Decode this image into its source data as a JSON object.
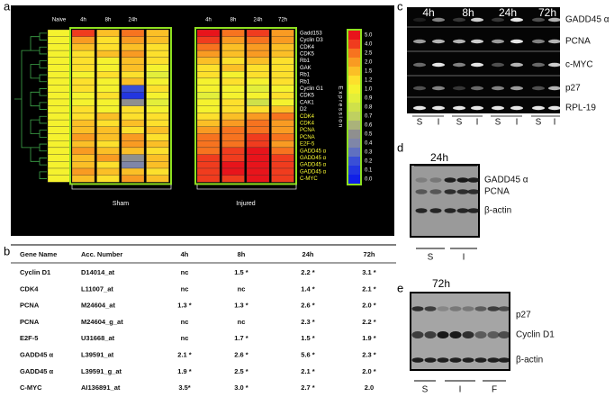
{
  "panels": {
    "a": "a",
    "b": "b",
    "c": "c",
    "d": "d",
    "e": "e"
  },
  "heatmap": {
    "columns": [
      "Naive",
      "4h",
      "8h",
      "24h",
      null,
      "4h",
      "8h",
      "24h",
      "72h"
    ],
    "groups": [
      "Sham",
      "Injured"
    ],
    "genes": [
      {
        "label": "Gadd153",
        "color": "#ffffff"
      },
      {
        "label": "Cyclin D3",
        "color": "#ffffff"
      },
      {
        "label": "CDK4",
        "color": "#ffffff"
      },
      {
        "label": "CDK5",
        "color": "#ffffff"
      },
      {
        "label": "Rb1",
        "color": "#ffffff"
      },
      {
        "label": "GAK",
        "color": "#ffffff"
      },
      {
        "label": "Rb1",
        "color": "#ffffff"
      },
      {
        "label": "Rb1",
        "color": "#ffffff"
      },
      {
        "label": "Cyclin G1",
        "color": "#ffffff"
      },
      {
        "label": "CDK5",
        "color": "#ffffff"
      },
      {
        "label": "CAK1",
        "color": "#ffffff"
      },
      {
        "label": "D2",
        "color": "#ffffff"
      },
      {
        "label": "CDK4",
        "color": "#ffff33"
      },
      {
        "label": "CDK4",
        "color": "#ffff33"
      },
      {
        "label": "PCNA",
        "color": "#ffff33"
      },
      {
        "label": "PCNA",
        "color": "#ffff33"
      },
      {
        "label": "E2F-5",
        "color": "#ffff33"
      },
      {
        "label": "GADD45 α",
        "color": "#ffff33"
      },
      {
        "label": "GADD45 α",
        "color": "#ffff33"
      },
      {
        "label": "GADD45 α",
        "color": "#ffff33"
      },
      {
        "label": "GADD45 α",
        "color": "#ffff33"
      },
      {
        "label": "C-MYC",
        "color": "#ffff33"
      }
    ],
    "values": [
      [
        1.0,
        4.0,
        1.5,
        2.5,
        1.5,
        5.0,
        2.5,
        4.0,
        2.0
      ],
      [
        1.0,
        2.0,
        1.2,
        2.0,
        1.5,
        4.0,
        2.0,
        2.5,
        2.0
      ],
      [
        1.0,
        1.5,
        1.2,
        1.5,
        1.2,
        2.5,
        1.5,
        2.0,
        1.5
      ],
      [
        1.0,
        1.2,
        1.5,
        2.0,
        1.2,
        2.0,
        1.5,
        2.0,
        1.5
      ],
      [
        1.0,
        1.2,
        1.0,
        1.5,
        1.2,
        1.5,
        1.2,
        1.5,
        1.2
      ],
      [
        1.0,
        1.2,
        1.0,
        1.5,
        1.0,
        1.2,
        1.5,
        1.2,
        1.2
      ],
      [
        1.0,
        1.0,
        1.2,
        1.2,
        0.9,
        1.2,
        1.0,
        1.2,
        1.2
      ],
      [
        1.0,
        1.2,
        1.0,
        1.5,
        1.0,
        1.0,
        1.2,
        1.0,
        1.2
      ],
      [
        1.0,
        1.2,
        1.0,
        0.2,
        1.2,
        1.0,
        1.0,
        0.9,
        1.0
      ],
      [
        1.0,
        1.0,
        1.2,
        0.1,
        1.0,
        0.9,
        1.0,
        1.0,
        1.2
      ],
      [
        1.0,
        1.0,
        1.0,
        0.5,
        0.9,
        1.0,
        1.2,
        0.8,
        1.0
      ],
      [
        1.0,
        1.2,
        1.0,
        1.2,
        1.0,
        1.0,
        1.2,
        1.2,
        1.5
      ],
      [
        1.0,
        1.2,
        1.5,
        1.2,
        1.2,
        1.2,
        1.5,
        2.0,
        2.5
      ],
      [
        1.0,
        1.5,
        1.2,
        1.5,
        1.2,
        1.5,
        2.0,
        2.5,
        2.0
      ],
      [
        1.0,
        1.5,
        1.5,
        1.2,
        1.5,
        2.0,
        2.5,
        2.5,
        2.0
      ],
      [
        1.0,
        2.0,
        1.5,
        2.0,
        1.2,
        2.5,
        2.5,
        4.0,
        2.5
      ],
      [
        1.0,
        1.5,
        1.2,
        2.0,
        1.5,
        2.5,
        2.5,
        4.0,
        2.0
      ],
      [
        1.0,
        2.0,
        1.5,
        1.5,
        1.2,
        2.5,
        4.0,
        5.0,
        2.5
      ],
      [
        1.0,
        1.5,
        2.0,
        0.5,
        1.5,
        4.0,
        4.0,
        5.0,
        4.0
      ],
      [
        1.0,
        1.5,
        1.2,
        0.4,
        1.5,
        4.0,
        5.0,
        5.0,
        4.0
      ],
      [
        1.0,
        2.0,
        1.5,
        1.5,
        1.2,
        4.0,
        5.0,
        5.0,
        4.0
      ],
      [
        1.0,
        1.5,
        1.2,
        2.0,
        1.5,
        4.0,
        4.0,
        5.0,
        4.0
      ]
    ],
    "scale_title": "Expression",
    "scale_ticks": [
      {
        "value": 5,
        "label": "5.0"
      },
      {
        "value": 4,
        "label": "4.0"
      },
      2.5,
      {
        "value": 2,
        "label": "2.0"
      },
      1.5,
      1.2,
      {
        "value": 1,
        "label": "1.0"
      },
      0.9,
      0.8,
      0.7,
      0.6,
      0.5,
      0.4,
      0.3,
      0.2,
      0.1,
      {
        "value": 0,
        "label": "0.0"
      }
    ],
    "scale_colors": [
      "#e8141b",
      "#f03c1e",
      "#f7731f",
      "#f99b22",
      "#fbbf26",
      "#fde02c",
      "#f5f22e",
      "#e3ef3a",
      "#cfe14a",
      "#bfd060",
      "#aab27a",
      "#8f8f8f",
      "#7f86a8",
      "#6070c0",
      "#3a4fd6",
      "#2236e0",
      "#1020e8"
    ]
  },
  "table": {
    "header": [
      "Gene Name",
      "Acc. Number",
      "4h",
      "8h",
      "24h",
      "72h"
    ],
    "rows": [
      [
        "Cyclin D1",
        "D14014_at",
        "nc",
        "1.5 *",
        "2.2 *",
        "3.1 *"
      ],
      [
        "CDK4",
        "L11007_at",
        "nc",
        "nc",
        "1.4 *",
        "2.1 *"
      ],
      [
        "PCNA",
        "M24604_at",
        "1.3 *",
        "1.3 *",
        "2.6 *",
        "2.0 *"
      ],
      [
        "PCNA",
        "M24604_g_at",
        "nc",
        "nc",
        "2.3 *",
        "2.2 *"
      ],
      [
        "E2F-5",
        "U31668_at",
        "nc",
        "1.7 *",
        "1.5 *",
        "1.9 *"
      ],
      [
        "GADD45 α",
        "L39591_at",
        "2.1 *",
        "2.6 *",
        "5.6 *",
        "2.3 *"
      ],
      [
        "GADD45 α",
        "L39591_g_at",
        "1.9 *",
        "2.5 *",
        "2.1 *",
        "2.0 *"
      ],
      [
        "C-MYC",
        "AI136891_at",
        "3.5*",
        "3.0 *",
        "2.7 *",
        "2.0"
      ]
    ]
  },
  "blot_c": {
    "times": [
      "4h",
      "8h",
      "24h",
      "72h"
    ],
    "genes": [
      "GADD45 α",
      "PCNA",
      "c-MYC",
      "p27",
      "RPL-19"
    ],
    "lanes": [
      "S",
      "I",
      "S",
      "I",
      "S",
      "I",
      "S",
      "I"
    ]
  },
  "blot_d": {
    "time": "24h",
    "proteins": [
      "GADD45 α",
      "PCNA",
      "β-actin"
    ],
    "groups": [
      "S",
      "I"
    ]
  },
  "blot_e": {
    "time": "72h",
    "proteins": [
      "p27",
      "Cyclin D1",
      "β-actin"
    ],
    "groups": [
      "S",
      "I",
      "F"
    ]
  }
}
